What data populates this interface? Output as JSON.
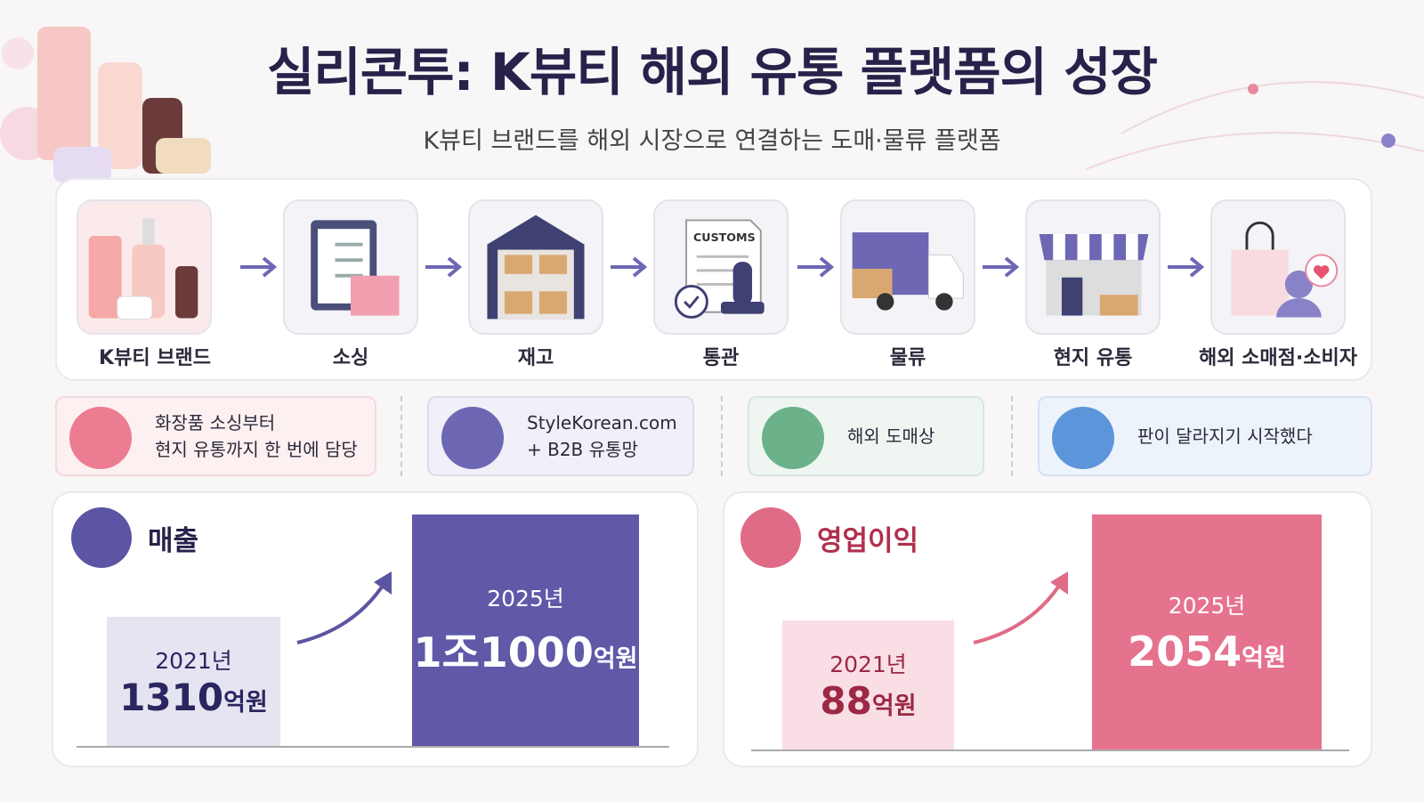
{
  "header": {
    "title": "실리콘투: K뷰티 해외 유통 플랫폼의 성장",
    "subtitle": "K뷰티 브랜드를 해외 시장으로 연결하는 도매·물류 플랫폼"
  },
  "flow": {
    "steps": [
      "K뷰티 브랜드",
      "소싱",
      "재고",
      "통관",
      "물류",
      "현지 유통",
      "해외 소매점·소비자"
    ],
    "customs_stamp": "CUSTOMS"
  },
  "features": [
    {
      "lines": [
        "화장품 소싱부터",
        "현지 유통까지 한 번에 담당"
      ]
    },
    {
      "lines": [
        "StyleKorean.com",
        "+ B2B 유통망"
      ]
    },
    {
      "lines": [
        "해외 도매상"
      ]
    },
    {
      "lines": [
        "판이 달라지기 시작했다"
      ]
    }
  ],
  "panels": [
    {
      "title": "매출",
      "before": {
        "year": "2021년",
        "amount": "1310",
        "unit": "억원"
      },
      "after": {
        "year": "2025년",
        "amount": "1조1000",
        "unit": "억원"
      }
    },
    {
      "title": "영업이익",
      "before": {
        "year": "2021년",
        "amount": "88",
        "unit": "억원"
      },
      "after": {
        "year": "2025년",
        "amount": "2054",
        "unit": "억원"
      }
    }
  ]
}
